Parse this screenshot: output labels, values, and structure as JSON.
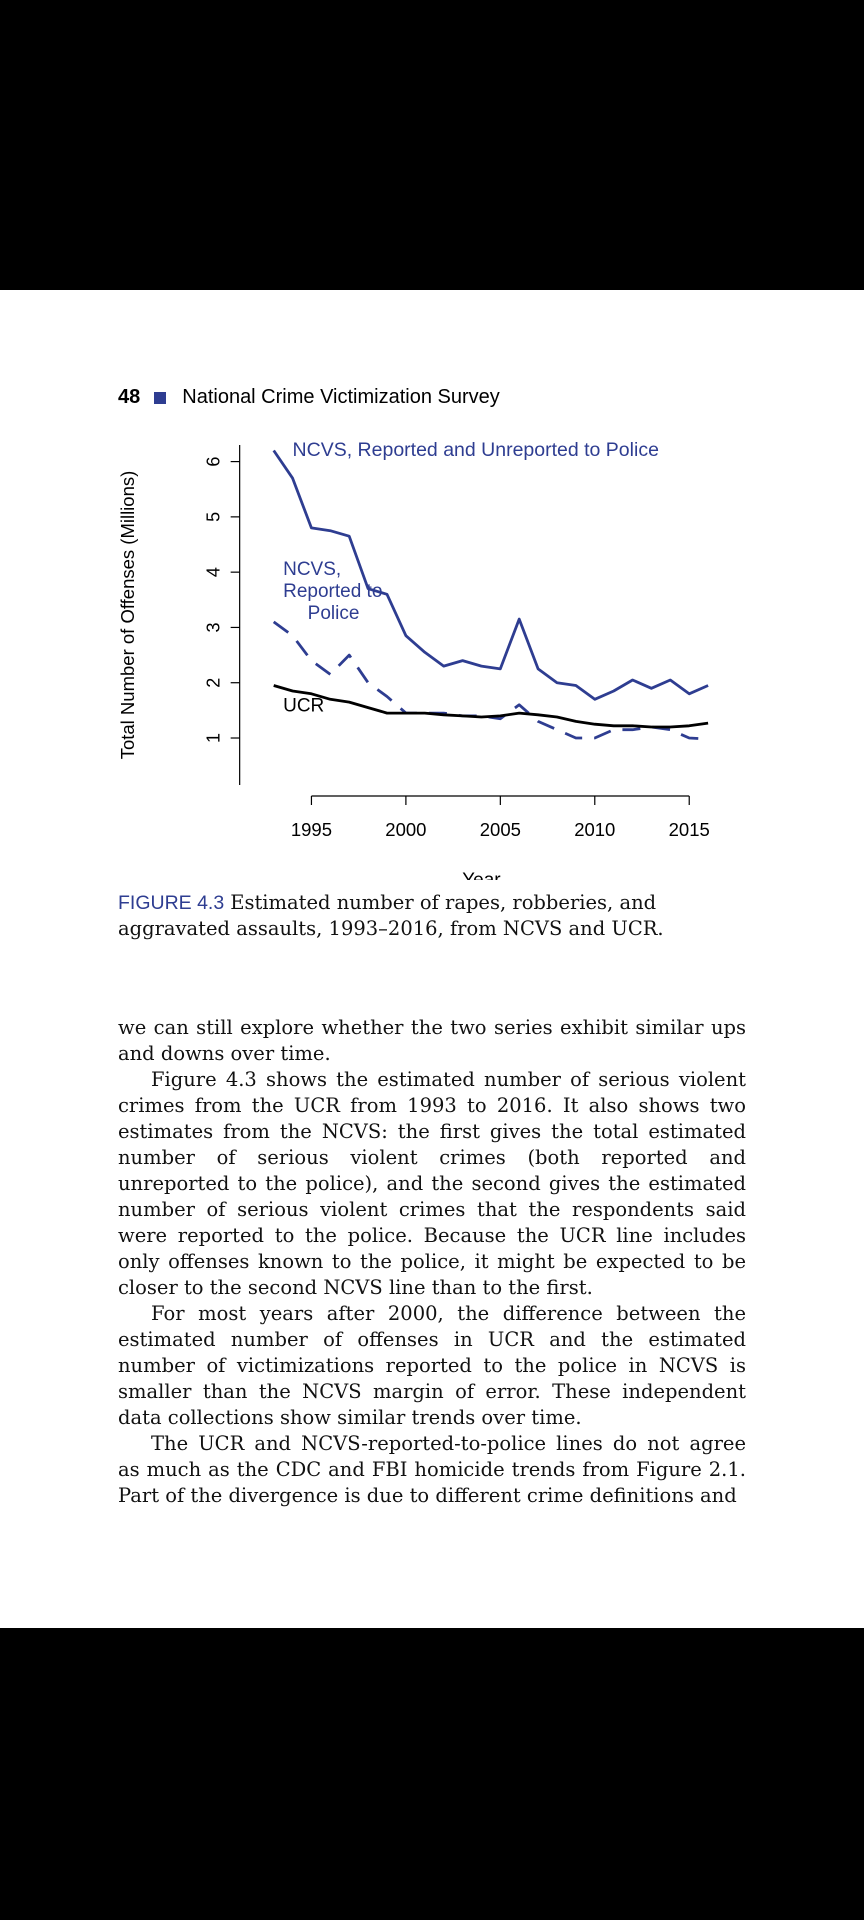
{
  "header": {
    "page_number": "48",
    "running_title": "National Crime Victimization Survey"
  },
  "figure": {
    "label": "FIGURE 4.3",
    "caption": "Estimated number of rapes, robberies, and aggravated assaults, 1993–2016, from NCVS and UCR."
  },
  "chart_data": {
    "type": "line",
    "xlabel": "Year",
    "ylabel": "Total Number of Offenses (Millions)",
    "xlim": [
      1990,
      2017
    ],
    "ylim": [
      0.15,
      6.3
    ],
    "xticks": [
      1995,
      2000,
      2005,
      2010,
      2015
    ],
    "yticks": [
      1,
      2,
      3,
      4,
      5,
      6
    ],
    "grid": false,
    "x": [
      1993,
      1994,
      1995,
      1996,
      1997,
      1998,
      1999,
      2000,
      2001,
      2002,
      2003,
      2004,
      2005,
      2006,
      2007,
      2008,
      2009,
      2010,
      2011,
      2012,
      2013,
      2014,
      2015,
      2016
    ],
    "series": [
      {
        "name": "NCVS, Reported and Unreported to Police",
        "style": "solid",
        "color": "#2e3d91",
        "values": [
          6.2,
          5.7,
          4.8,
          4.75,
          4.65,
          3.7,
          3.6,
          2.85,
          2.55,
          2.3,
          2.4,
          2.3,
          2.25,
          3.15,
          2.25,
          2.0,
          1.95,
          1.7,
          1.85,
          2.05,
          1.9,
          2.05,
          1.8,
          1.95
        ]
      },
      {
        "name": "NCVS, Reported to Police",
        "style": "dashed",
        "color": "#2e3d91",
        "values": [
          3.1,
          2.85,
          2.4,
          2.15,
          2.5,
          2.0,
          1.75,
          1.45,
          1.45,
          1.45,
          1.4,
          1.4,
          1.35,
          1.6,
          1.3,
          1.15,
          1.0,
          1.0,
          1.15,
          1.15,
          1.2,
          1.15,
          1.0,
          0.98
        ]
      },
      {
        "name": "UCR",
        "style": "solid",
        "color": "#000000",
        "values": [
          1.95,
          1.85,
          1.8,
          1.7,
          1.65,
          1.55,
          1.45,
          1.45,
          1.45,
          1.42,
          1.4,
          1.38,
          1.4,
          1.45,
          1.42,
          1.38,
          1.3,
          1.25,
          1.22,
          1.22,
          1.2,
          1.2,
          1.22,
          1.27
        ]
      }
    ]
  },
  "body": {
    "p1": "we can still explore whether the two series exhibit similar ups and downs over time.",
    "p2": "Figure 4.3 shows the estimated number of serious violent crimes from the UCR from 1993 to 2016. It also shows two estimates from the NCVS: the first gives the total estimated number of serious violent crimes (both reported and unreported to the police), and the second gives the estimated number of serious violent crimes that the respondents said were reported to the police. Because the UCR line includes only offenses known to the police, it might be expected to be closer to the second NCVS line than to the first.",
    "p3": "For most years after 2000, the difference between the estimated number of offenses in UCR and the estimated number of victimizations reported to the police in NCVS is smaller than the NCVS margin of error. These independent data collections show similar trends over time.",
    "p4": "The UCR and NCVS-reported-to-police lines do not agree as much as the CDC and FBI homicide trends from Figure 2.1. Part of the divergence is due to different crime definitions and"
  }
}
